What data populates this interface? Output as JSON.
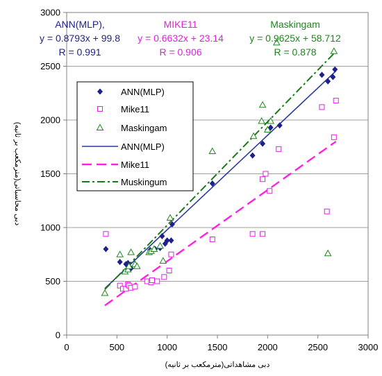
{
  "chart_data": {
    "type": "scatter",
    "xlabel": "دبی مشاهداتی(مترمکعب بر ثانیه)",
    "ylabel": "دبی محاسباتی(مترمکعب بر ثانیه)",
    "xlim": [
      0,
      3000
    ],
    "ylim": [
      0,
      3000
    ],
    "xticks": [
      "0",
      "500",
      "1000",
      "1500",
      "2000",
      "2500",
      "3000"
    ],
    "yticks": [
      "0",
      "500",
      "1000",
      "1500",
      "2000",
      "2500",
      "3000"
    ],
    "grid": "horizontal",
    "legend_position": "left-middle",
    "annotations": [
      {
        "name": "ANN(MLP),",
        "equation": "y = 0.8793x + 99.8",
        "r": "R = 0.991",
        "color": "#1f1f8f"
      },
      {
        "name": "MIKE11",
        "equation": "y = 0.6632x + 23.14",
        "r": "R = 0.906",
        "color": "#e020e0"
      },
      {
        "name": "Maskingam",
        "equation": "y = 0.9625x + 58.712",
        "r": "R = 0.878",
        "color": "#1a8a1a"
      }
    ],
    "series": [
      {
        "name": "ANN(MLP)",
        "marker": "diamond",
        "color": "#1f1f8f",
        "points": [
          [
            390,
            800
          ],
          [
            530,
            680
          ],
          [
            590,
            660
          ],
          [
            610,
            670
          ],
          [
            640,
            620
          ],
          [
            830,
            790
          ],
          [
            880,
            800
          ],
          [
            930,
            810
          ],
          [
            950,
            920
          ],
          [
            980,
            850
          ],
          [
            1000,
            880
          ],
          [
            1040,
            880
          ],
          [
            1050,
            1030
          ],
          [
            1450,
            1410
          ],
          [
            1850,
            1670
          ],
          [
            1950,
            1780
          ],
          [
            2000,
            1910
          ],
          [
            2030,
            1930
          ],
          [
            2120,
            1950
          ],
          [
            2540,
            2420
          ],
          [
            2600,
            2360
          ],
          [
            2650,
            2400
          ],
          [
            2670,
            2470
          ]
        ]
      },
      {
        "name": "Mike11",
        "marker": "square",
        "color": "#e020e0",
        "points": [
          [
            390,
            940
          ],
          [
            530,
            460
          ],
          [
            560,
            430
          ],
          [
            590,
            430
          ],
          [
            610,
            470
          ],
          [
            620,
            460
          ],
          [
            640,
            440
          ],
          [
            680,
            450
          ],
          [
            800,
            500
          ],
          [
            840,
            490
          ],
          [
            850,
            510
          ],
          [
            900,
            500
          ],
          [
            970,
            540
          ],
          [
            1020,
            600
          ],
          [
            1040,
            750
          ],
          [
            1450,
            890
          ],
          [
            1850,
            940
          ],
          [
            1950,
            940
          ],
          [
            1950,
            1450
          ],
          [
            1980,
            1500
          ],
          [
            2020,
            1340
          ],
          [
            2110,
            1730
          ],
          [
            2540,
            2120
          ],
          [
            2590,
            1150
          ],
          [
            2660,
            1840
          ],
          [
            2680,
            2180
          ]
        ]
      },
      {
        "name": "Maskingam",
        "marker": "triangle",
        "color": "#1a8a1a",
        "points": [
          [
            380,
            390
          ],
          [
            530,
            750
          ],
          [
            580,
            590
          ],
          [
            610,
            610
          ],
          [
            620,
            640
          ],
          [
            640,
            770
          ],
          [
            680,
            660
          ],
          [
            700,
            640
          ],
          [
            820,
            770
          ],
          [
            840,
            780
          ],
          [
            870,
            800
          ],
          [
            930,
            830
          ],
          [
            960,
            690
          ],
          [
            1030,
            1090
          ],
          [
            1450,
            1710
          ],
          [
            1860,
            1850
          ],
          [
            1940,
            1990
          ],
          [
            1950,
            2140
          ],
          [
            2000,
            1910
          ],
          [
            2030,
            1990
          ],
          [
            2090,
            2720
          ],
          [
            2600,
            760
          ],
          [
            2660,
            2640
          ]
        ]
      }
    ],
    "lines": [
      {
        "name": "ANN(MLP)",
        "style": "solid",
        "color": "#2b3a9e",
        "x": [
          380,
          2680
        ],
        "slope": 0.8793,
        "intercept": 99.8
      },
      {
        "name": "Mike11",
        "style": "dashed",
        "color": "#ff22dd",
        "x": [
          380,
          2680
        ],
        "slope": 0.6632,
        "intercept": 23.14
      },
      {
        "name": "Muskingum",
        "style": "dashdot",
        "color": "#1a7a1a",
        "x": [
          380,
          2680
        ],
        "slope": 0.9625,
        "intercept": 58.712
      }
    ],
    "legend": [
      "ANN(MLP)",
      "Mike11",
      "Maskingam",
      "ANN(MLP)",
      "Mike11",
      "Muskingum"
    ]
  }
}
